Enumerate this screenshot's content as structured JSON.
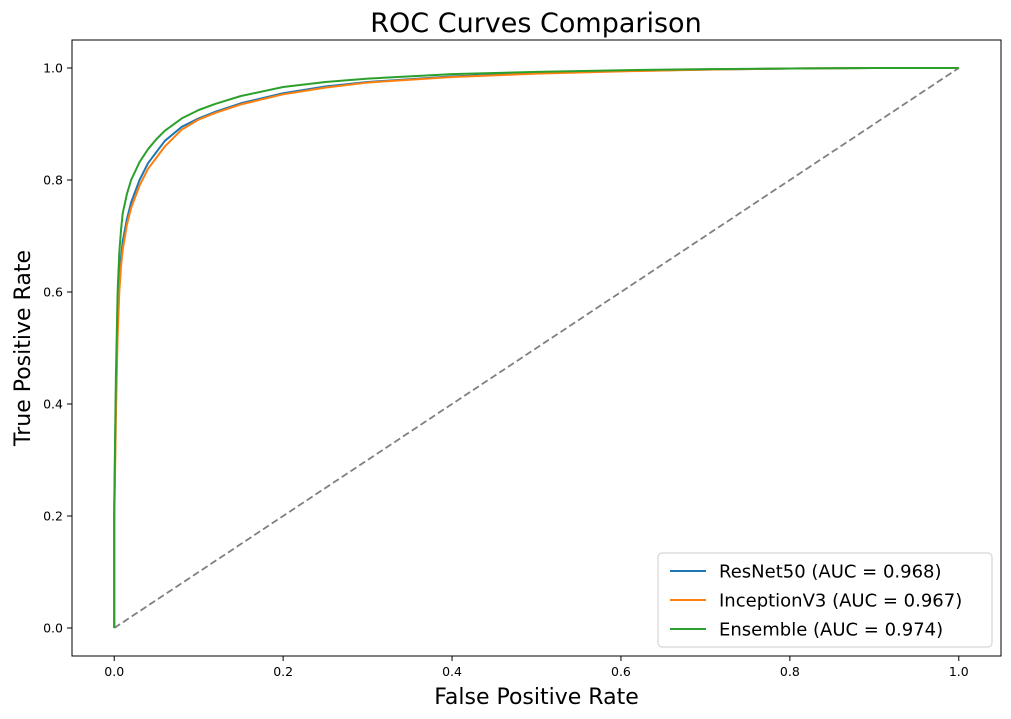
{
  "chart_data": {
    "type": "line",
    "title": "ROC Curves Comparison",
    "xlabel": "False Positive Rate",
    "ylabel": "True Positive Rate",
    "xlim": [
      -0.05,
      1.05
    ],
    "ylim": [
      -0.05,
      1.05
    ],
    "xticks": [
      0.0,
      0.2,
      0.4,
      0.6,
      0.8,
      1.0
    ],
    "yticks": [
      0.0,
      0.2,
      0.4,
      0.6,
      0.8,
      1.0
    ],
    "xtick_labels": [
      "0.0",
      "0.2",
      "0.4",
      "0.6",
      "0.8",
      "1.0"
    ],
    "ytick_labels": [
      "0.0",
      "0.2",
      "0.4",
      "0.6",
      "0.8",
      "1.0"
    ],
    "grid": false,
    "legend_position": "lower-right",
    "series": [
      {
        "name": "ResNet50 (AUC = 0.968)",
        "color": "#1f77b4",
        "x": [
          0,
          0,
          0.002,
          0.004,
          0.006,
          0.008,
          0.01,
          0.015,
          0.02,
          0.03,
          0.04,
          0.05,
          0.06,
          0.08,
          0.1,
          0.12,
          0.15,
          0.2,
          0.25,
          0.3,
          0.4,
          0.5,
          0.6,
          0.7,
          0.8,
          0.9,
          1.0
        ],
        "y": [
          0,
          0.2,
          0.42,
          0.55,
          0.62,
          0.66,
          0.69,
          0.73,
          0.76,
          0.8,
          0.83,
          0.85,
          0.87,
          0.895,
          0.91,
          0.922,
          0.937,
          0.955,
          0.967,
          0.975,
          0.985,
          0.991,
          0.995,
          0.997,
          0.999,
          1.0,
          1.0
        ]
      },
      {
        "name": "InceptionV3 (AUC = 0.967)",
        "color": "#ff7f0e",
        "x": [
          0,
          0,
          0.002,
          0.004,
          0.006,
          0.008,
          0.01,
          0.015,
          0.02,
          0.03,
          0.04,
          0.05,
          0.06,
          0.08,
          0.1,
          0.12,
          0.15,
          0.2,
          0.25,
          0.3,
          0.4,
          0.5,
          0.6,
          0.7,
          0.8,
          0.9,
          1.0
        ],
        "y": [
          0,
          0.18,
          0.38,
          0.52,
          0.6,
          0.645,
          0.675,
          0.72,
          0.75,
          0.79,
          0.82,
          0.84,
          0.86,
          0.89,
          0.908,
          0.92,
          0.935,
          0.953,
          0.965,
          0.974,
          0.984,
          0.99,
          0.994,
          0.997,
          0.999,
          1.0,
          1.0
        ]
      },
      {
        "name": "Ensemble (AUC = 0.974)",
        "color": "#2ca02c",
        "x": [
          0,
          0,
          0.002,
          0.004,
          0.006,
          0.008,
          0.01,
          0.015,
          0.02,
          0.03,
          0.04,
          0.05,
          0.06,
          0.08,
          0.1,
          0.12,
          0.15,
          0.2,
          0.25,
          0.3,
          0.4,
          0.5,
          0.6,
          0.7,
          0.8,
          0.9,
          1.0
        ],
        "y": [
          0,
          0.22,
          0.45,
          0.6,
          0.67,
          0.71,
          0.74,
          0.775,
          0.8,
          0.832,
          0.855,
          0.873,
          0.888,
          0.91,
          0.925,
          0.936,
          0.95,
          0.966,
          0.975,
          0.981,
          0.989,
          0.993,
          0.996,
          0.998,
          0.999,
          1.0,
          1.0
        ]
      }
    ],
    "reference_line": {
      "x": [
        0,
        1
      ],
      "y": [
        0,
        1
      ],
      "color": "#808080",
      "style": "dashed"
    }
  }
}
